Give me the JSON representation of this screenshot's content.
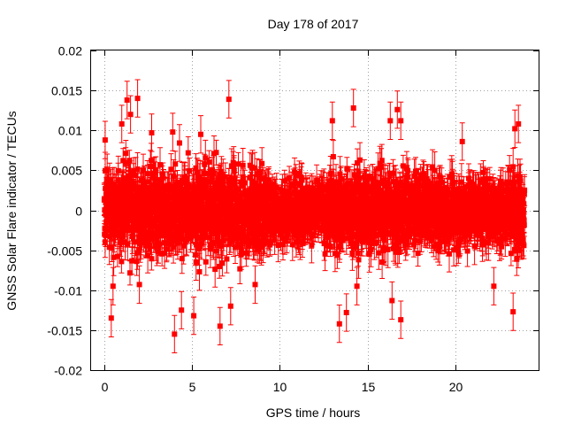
{
  "chart_data": {
    "type": "scatter",
    "title": "Day 178 of 2017",
    "xlabel": "GPS time / hours",
    "ylabel": "GNSS Solar Flare indicator / TECUs",
    "xlim": [
      -0.75,
      24.75
    ],
    "ylim": [
      -0.02,
      0.02
    ],
    "x_ticks": [
      0,
      5,
      10,
      15,
      20
    ],
    "x_tick_labels": [
      "0",
      "5",
      "10",
      "15",
      "20"
    ],
    "y_ticks": [
      -0.02,
      -0.015,
      -0.01,
      -0.005,
      0,
      0.005,
      0.01,
      0.015,
      0.02
    ],
    "y_tick_labels": [
      "-0.02",
      "-0.015",
      "-0.01",
      "-0.005",
      "0",
      "0.005",
      "0.01",
      "0.015",
      "0.02"
    ],
    "grid": true,
    "series": [
      {
        "name": "GNSS Solar Flare indicator",
        "color": "#ff0000",
        "marker": "square",
        "error_bars": true,
        "sampling_interval_hours": 0.00833,
        "time_range_hours": [
          0,
          23.95
        ],
        "typical_spread": 0.0045,
        "typical_error": 0.0018,
        "extreme_points": [
          {
            "x": 0.05,
            "y": 0.0088
          },
          {
            "x": 0.4,
            "y": -0.0135
          },
          {
            "x": 0.5,
            "y": -0.0095
          },
          {
            "x": 1.0,
            "y": 0.0108
          },
          {
            "x": 1.3,
            "y": 0.0138
          },
          {
            "x": 1.5,
            "y": 0.012
          },
          {
            "x": 1.9,
            "y": 0.014
          },
          {
            "x": 2.0,
            "y": -0.0093
          },
          {
            "x": 2.7,
            "y": 0.0097
          },
          {
            "x": 3.9,
            "y": 0.0098
          },
          {
            "x": 4.0,
            "y": -0.0155
          },
          {
            "x": 4.4,
            "y": -0.0125
          },
          {
            "x": 5.1,
            "y": -0.0132
          },
          {
            "x": 5.5,
            "y": 0.0095
          },
          {
            "x": 6.6,
            "y": -0.0145
          },
          {
            "x": 7.1,
            "y": 0.0139
          },
          {
            "x": 7.2,
            "y": -0.012
          },
          {
            "x": 8.6,
            "y": -0.0093
          },
          {
            "x": 13.0,
            "y": 0.0112
          },
          {
            "x": 13.4,
            "y": -0.0142
          },
          {
            "x": 13.8,
            "y": -0.0128
          },
          {
            "x": 14.2,
            "y": 0.0128
          },
          {
            "x": 14.4,
            "y": -0.0095
          },
          {
            "x": 16.3,
            "y": 0.0112
          },
          {
            "x": 16.4,
            "y": -0.0113
          },
          {
            "x": 16.7,
            "y": 0.0126
          },
          {
            "x": 16.9,
            "y": 0.0112
          },
          {
            "x": 16.9,
            "y": -0.0137
          },
          {
            "x": 20.4,
            "y": 0.0086
          },
          {
            "x": 22.2,
            "y": -0.0095
          },
          {
            "x": 23.3,
            "y": -0.0127
          },
          {
            "x": 23.4,
            "y": 0.0102
          },
          {
            "x": 23.6,
            "y": 0.0108
          }
        ]
      }
    ]
  }
}
